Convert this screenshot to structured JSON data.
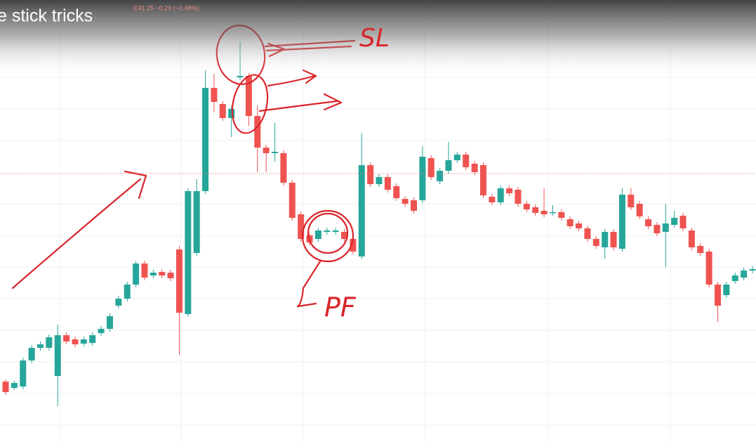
{
  "chart_data": {
    "type": "candlestick",
    "title": "e stick tricks",
    "subtitle": "C41.25 −0.20 (−0.48%)",
    "annotations": [
      "SL",
      "PF"
    ],
    "ylim": [
      0,
      629
    ],
    "reference_line": 382,
    "up_color": "#26a69a",
    "down_color": "#ef5350",
    "open": [
      86,
      77,
      79,
      116,
      134,
      134,
      94,
      152,
      146,
      140,
      141,
      155,
      161,
      194,
      204,
      224,
      254,
      237,
      242,
      241,
      274,
      182,
      269,
      357,
      504,
      481,
      461,
      519,
      521,
      464,
      419,
      411,
      411,
      369,
      324,
      294,
      289,
      299,
      299,
      299,
      289,
      264,
      394,
      367,
      377,
      364,
      346,
      344,
      344,
      404,
      371,
      386,
      401,
      409,
      396,
      394,
      349,
      341,
      361,
      359,
      339,
      334,
      329,
      326,
      327,
      317,
      311,
      304,
      289,
      277,
      299,
      275,
      352,
      339,
      317,
      309,
      299,
      309,
      322,
      301,
      279,
      271,
      224,
      209,
      229,
      234,
      244
    ],
    "high": [
      89,
      87,
      120,
      138,
      143,
      153,
      167,
      156,
      150,
      150,
      156,
      165,
      183,
      208,
      228,
      258,
      258,
      245,
      246,
      245,
      279,
      361,
      374,
      529,
      524,
      485,
      478,
      569,
      525,
      479,
      423,
      454,
      415,
      373,
      328,
      298,
      305,
      305,
      305,
      303,
      293,
      439,
      398,
      381,
      381,
      368,
      350,
      348,
      421,
      408,
      390,
      427,
      413,
      413,
      400,
      398,
      353,
      365,
      365,
      363,
      343,
      338,
      361,
      337,
      331,
      321,
      315,
      308,
      293,
      303,
      303,
      361,
      361,
      343,
      321,
      313,
      339,
      329,
      326,
      305,
      283,
      275,
      228,
      228,
      241,
      248,
      250
    ],
    "low": [
      67,
      74,
      75,
      112,
      130,
      130,
      51,
      139,
      135,
      136,
      137,
      151,
      157,
      190,
      200,
      220,
      230,
      233,
      233,
      229,
      124,
      178,
      265,
      353,
      469,
      457,
      434,
      515,
      450,
      384,
      384,
      399,
      365,
      315,
      285,
      280,
      285,
      295,
      295,
      285,
      267,
      260,
      363,
      363,
      355,
      343,
      335,
      325,
      340,
      373,
      367,
      382,
      397,
      387,
      380,
      347,
      337,
      337,
      350,
      335,
      327,
      322,
      320,
      322,
      315,
      303,
      300,
      285,
      275,
      261,
      273,
      271,
      330,
      317,
      303,
      293,
      249,
      305,
      300,
      273,
      265,
      220,
      171,
      205,
      225,
      230,
      240
    ],
    "close": [
      71,
      84,
      116,
      134,
      139,
      149,
      152,
      143,
      139,
      146,
      152,
      161,
      179,
      204,
      224,
      254,
      234,
      241,
      237,
      233,
      184,
      357,
      357,
      504,
      484,
      461,
      474,
      521,
      464,
      419,
      411,
      413,
      369,
      319,
      289,
      284,
      301,
      301,
      301,
      289,
      271,
      394,
      367,
      377,
      359,
      347,
      339,
      329,
      406,
      377,
      386,
      401,
      409,
      391,
      384,
      351,
      341,
      361,
      354,
      339,
      331,
      326,
      324,
      327,
      319,
      307,
      304,
      289,
      279,
      299,
      277,
      352,
      334,
      321,
      307,
      297,
      311,
      319,
      304,
      277,
      269,
      224,
      194,
      224,
      237,
      244,
      246
    ]
  }
}
